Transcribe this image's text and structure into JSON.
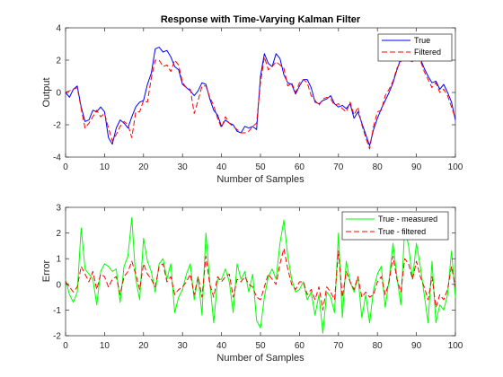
{
  "chart_data": [
    {
      "type": "line",
      "title": "Response with Time-Varying Kalman Filter",
      "xlabel": "Number of Samples",
      "ylabel": "Output",
      "xlim": [
        0,
        100
      ],
      "ylim": [
        -4,
        4
      ],
      "xticks": [
        "0",
        "10",
        "20",
        "30",
        "40",
        "50",
        "60",
        "70",
        "80",
        "90",
        "100"
      ],
      "yticks": [
        "-4",
        "-2",
        "0",
        "2",
        "4"
      ],
      "grid": false,
      "legend_position": "top-right",
      "series": [
        {
          "name": "True",
          "color": "#0000ff",
          "dash": "solid",
          "x": [
            0,
            1,
            2,
            3,
            4,
            5,
            6,
            7,
            8,
            9,
            10,
            11,
            12,
            13,
            14,
            15,
            16,
            17,
            18,
            19,
            20,
            21,
            22,
            23,
            24,
            25,
            26,
            27,
            28,
            29,
            30,
            31,
            32,
            33,
            34,
            35,
            36,
            37,
            38,
            39,
            40,
            41,
            42,
            43,
            44,
            45,
            46,
            47,
            48,
            49,
            50,
            51,
            52,
            53,
            54,
            55,
            56,
            57,
            58,
            59,
            60,
            61,
            62,
            63,
            64,
            65,
            66,
            67,
            68,
            69,
            70,
            71,
            72,
            73,
            74,
            75,
            76,
            77,
            78,
            79,
            80,
            81,
            82,
            83,
            84,
            85,
            86,
            87,
            88,
            89,
            90,
            91,
            92,
            93,
            94,
            95,
            96,
            97,
            98,
            99,
            100
          ],
          "y": [
            0,
            -0.3,
            0.2,
            0.4,
            -0.9,
            -1.8,
            -1.7,
            -1.1,
            -1.2,
            -0.9,
            -1.2,
            -2.8,
            -3.2,
            -2.2,
            -1.7,
            -1.9,
            -2.2,
            -1.5,
            -0.9,
            -0.6,
            -0.5,
            0.5,
            1.2,
            2.7,
            2.8,
            2.5,
            2.6,
            2.2,
            1.6,
            1.4,
            0.5,
            0.3,
            0.1,
            -0.2,
            0.1,
            0.6,
            0.5,
            -0.4,
            -1.1,
            -1.4,
            -2.1,
            -1.7,
            -1.9,
            -2.0,
            -2.4,
            -2.5,
            -2.1,
            -2.2,
            -2.1,
            -2.3,
            1.0,
            2.4,
            1.8,
            1.6,
            2.4,
            2.1,
            1.1,
            0.6,
            0.5,
            -0.1,
            0.4,
            0.8,
            0.8,
            0.3,
            -0.6,
            -0.7,
            -0.5,
            -0.4,
            -0.2,
            -0.7,
            -0.9,
            -0.8,
            -1.0,
            -0.7,
            -1.6,
            -1.2,
            -1.9,
            -2.6,
            -3.3,
            -2.3,
            -1.6,
            -1.0,
            -0.5,
            0.0,
            0.6,
            1.4,
            2.1,
            2.6,
            2.3,
            2.0,
            2.3,
            2.1,
            1.5,
            1.0,
            0.6,
            0.7,
            0.2,
            0.5,
            0.0,
            -0.6,
            -1.7
          ]
        },
        {
          "name": "Filtered",
          "color": "#ff0000",
          "dash": "dashed",
          "x": [
            0,
            1,
            2,
            3,
            4,
            5,
            6,
            7,
            8,
            9,
            10,
            11,
            12,
            13,
            14,
            15,
            16,
            17,
            18,
            19,
            20,
            21,
            22,
            23,
            24,
            25,
            26,
            27,
            28,
            29,
            30,
            31,
            32,
            33,
            34,
            35,
            36,
            37,
            38,
            39,
            40,
            41,
            42,
            43,
            44,
            45,
            46,
            47,
            48,
            49,
            50,
            51,
            52,
            53,
            54,
            55,
            56,
            57,
            58,
            59,
            60,
            61,
            62,
            63,
            64,
            65,
            66,
            67,
            68,
            69,
            70,
            71,
            72,
            73,
            74,
            75,
            76,
            77,
            78,
            79,
            80,
            81,
            82,
            83,
            84,
            85,
            86,
            87,
            88,
            89,
            90,
            91,
            92,
            93,
            94,
            95,
            96,
            97,
            98,
            99,
            100
          ],
          "y": [
            0,
            0.1,
            0.2,
            0.3,
            -1.0,
            -2.2,
            -1.9,
            -1.5,
            -1.1,
            -1.5,
            -1.3,
            -2.2,
            -3.0,
            -2.6,
            -2.1,
            -1.8,
            -2.0,
            -2.8,
            -1.2,
            -1.2,
            -0.5,
            -0.6,
            0.9,
            2.0,
            2.0,
            1.6,
            1.7,
            1.3,
            2.0,
            1.7,
            0.6,
            0.3,
            0.2,
            -1.3,
            -0.5,
            0.4,
            0.4,
            -0.3,
            -0.8,
            -1.6,
            -2.2,
            -1.5,
            -1.9,
            -2.1,
            -2.3,
            -2.5,
            -2.5,
            -2.4,
            -2.1,
            -1.9,
            0.6,
            2.2,
            1.4,
            1.6,
            1.9,
            1.7,
            1.5,
            0.4,
            0.6,
            0.0,
            0.6,
            0.8,
            0.6,
            -0.2,
            -0.5,
            -0.8,
            -0.4,
            -0.3,
            -0.4,
            -0.8,
            -0.7,
            -1.0,
            -1.2,
            -0.6,
            -1.4,
            -0.9,
            -2.0,
            -2.8,
            -3.5,
            -2.1,
            -1.2,
            -1.1,
            -0.2,
            0.2,
            0.7,
            1.5,
            1.9,
            2.4,
            2.0,
            1.9,
            2.1,
            2.0,
            1.3,
            0.8,
            0.3,
            0.6,
            0.0,
            0.2,
            -0.2,
            -0.9,
            -1.6
          ]
        }
      ]
    },
    {
      "type": "line",
      "title": "",
      "xlabel": "Number of Samples",
      "ylabel": "Error",
      "xlim": [
        0,
        100
      ],
      "ylim": [
        -2,
        3
      ],
      "xticks": [
        "0",
        "10",
        "20",
        "30",
        "40",
        "50",
        "60",
        "70",
        "80",
        "90",
        "100"
      ],
      "yticks": [
        "-2",
        "-1",
        "0",
        "1",
        "2",
        "3"
      ],
      "grid": false,
      "legend_position": "top-right",
      "series": [
        {
          "name": "True - measured",
          "color": "#00ff00",
          "dash": "solid",
          "x": [
            0,
            1,
            2,
            3,
            4,
            5,
            6,
            7,
            8,
            9,
            10,
            11,
            12,
            13,
            14,
            15,
            16,
            17,
            18,
            19,
            20,
            21,
            22,
            23,
            24,
            25,
            26,
            27,
            28,
            29,
            30,
            31,
            32,
            33,
            34,
            35,
            36,
            37,
            38,
            39,
            40,
            41,
            42,
            43,
            44,
            45,
            46,
            47,
            48,
            49,
            50,
            51,
            52,
            53,
            54,
            55,
            56,
            57,
            58,
            59,
            60,
            61,
            62,
            63,
            64,
            65,
            66,
            67,
            68,
            69,
            70,
            71,
            72,
            73,
            74,
            75,
            76,
            77,
            78,
            79,
            80,
            81,
            82,
            83,
            84,
            85,
            86,
            87,
            88,
            89,
            90,
            91,
            92,
            93,
            94,
            95,
            96,
            97,
            98,
            99,
            100
          ],
          "y": [
            0.2,
            -0.4,
            -0.7,
            -0.3,
            2.2,
            0.6,
            0.4,
            0.2,
            -0.8,
            0.5,
            0.8,
            0.7,
            0.5,
            0.6,
            -0.7,
            0.7,
            1.1,
            2.6,
            0.2,
            -0.6,
            1.8,
            0.9,
            0.5,
            -0.3,
            0.8,
            1.0,
            0.2,
            0.8,
            -1.1,
            -0.5,
            -0.2,
            0.4,
            0.8,
            -0.6,
            0.3,
            -1.2,
            2.0,
            0.1,
            -1.5,
            0.2,
            0.2,
            0.6,
            0.1,
            -1.1,
            0.8,
            0.2,
            0.5,
            -0.3,
            0.4,
            -1.4,
            -1.7,
            -0.5,
            0.3,
            0.6,
            0.2,
            1.6,
            2.5,
            1.1,
            0.2,
            -0.3,
            -0.2,
            0.1,
            -0.6,
            -0.3,
            -1.2,
            -0.4,
            -1.9,
            -0.3,
            -0.5,
            -1.1,
            2.0,
            -1.3,
            0.9,
            0.1,
            -0.3,
            0.3,
            -1.3,
            -0.4,
            -1.5,
            -0.2,
            0.4,
            0.7,
            -0.9,
            0.2,
            1.6,
            0.3,
            -0.8,
            2.2,
            1.5,
            0.2,
            1.6,
            0.7,
            -0.4,
            -1.5,
            0.9,
            -1.5,
            -0.8,
            -1.0,
            -0.4,
            1.3,
            -0.5
          ]
        },
        {
          "name": "True - filtered",
          "color": "#ff0000",
          "dash": "dashed",
          "x": [
            0,
            1,
            2,
            3,
            4,
            5,
            6,
            7,
            8,
            9,
            10,
            11,
            12,
            13,
            14,
            15,
            16,
            17,
            18,
            19,
            20,
            21,
            22,
            23,
            24,
            25,
            26,
            27,
            28,
            29,
            30,
            31,
            32,
            33,
            34,
            35,
            36,
            37,
            38,
            39,
            40,
            41,
            42,
            43,
            44,
            45,
            46,
            47,
            48,
            49,
            50,
            51,
            52,
            53,
            54,
            55,
            56,
            57,
            58,
            59,
            60,
            61,
            62,
            63,
            64,
            65,
            66,
            67,
            68,
            69,
            70,
            71,
            72,
            73,
            74,
            75,
            76,
            77,
            78,
            79,
            80,
            81,
            82,
            83,
            84,
            85,
            86,
            87,
            88,
            89,
            90,
            91,
            92,
            93,
            94,
            95,
            96,
            97,
            98,
            99,
            100
          ],
          "y": [
            0.1,
            -0.1,
            -0.3,
            -0.1,
            0.7,
            0.4,
            0.1,
            0.5,
            -0.2,
            0.4,
            0.3,
            -0.1,
            0.2,
            0.3,
            -0.4,
            0.3,
            0.5,
            0.9,
            0.4,
            -0.2,
            0.8,
            0.4,
            0.2,
            -0.1,
            0.7,
            0.8,
            0.1,
            0.3,
            -0.4,
            -0.2,
            -0.1,
            0.1,
            0.4,
            -0.4,
            0.3,
            -0.5,
            1.1,
            0.0,
            -0.5,
            0.3,
            0.1,
            0.3,
            0.4,
            -0.5,
            0.2,
            0.1,
            0.3,
            0.0,
            -0.1,
            -0.5,
            -0.6,
            -0.1,
            0.4,
            0.2,
            0.0,
            0.8,
            1.4,
            0.6,
            0.0,
            -0.2,
            0.1,
            0.1,
            -0.4,
            -0.2,
            -0.6,
            -0.1,
            -1.0,
            -0.1,
            -0.3,
            -0.6,
            1.3,
            -0.5,
            0.5,
            0.1,
            -0.2,
            0.3,
            -0.5,
            -0.3,
            -0.5,
            -0.4,
            0.1,
            0.3,
            -0.4,
            0.1,
            1.1,
            0.2,
            -0.3,
            1.0,
            0.8,
            0.2,
            0.9,
            0.3,
            -0.1,
            -0.6,
            0.3,
            -0.9,
            -0.4,
            -0.6,
            -0.2,
            0.7,
            -0.1
          ]
        }
      ]
    }
  ]
}
